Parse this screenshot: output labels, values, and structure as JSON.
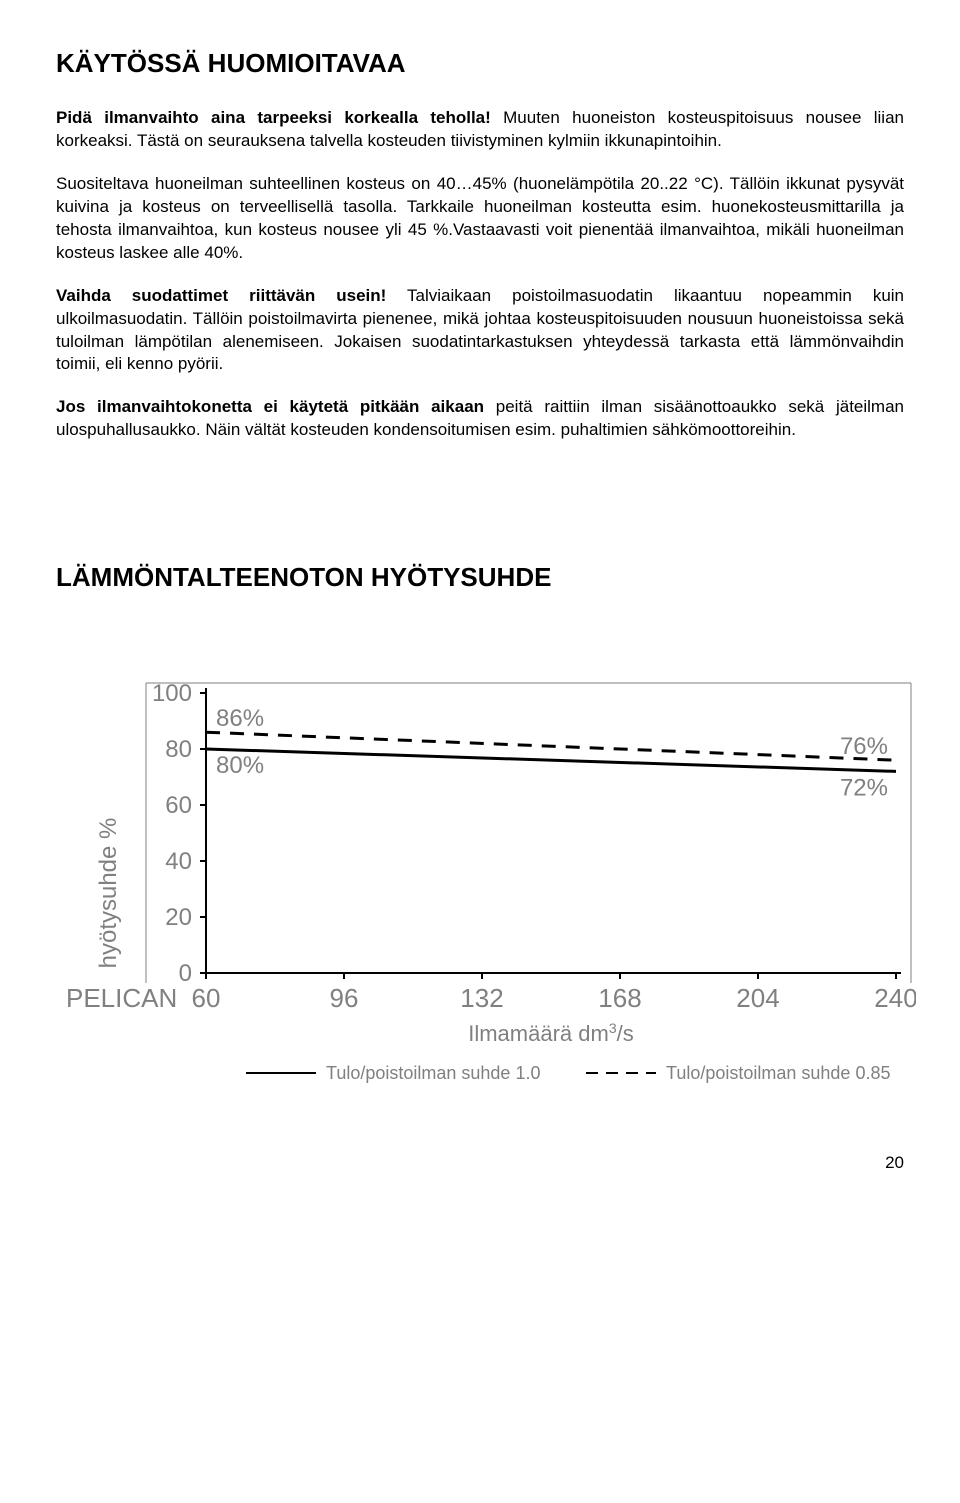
{
  "heading1": "KÄYTÖSSÄ HUOMIOITAVAA",
  "p1_bold": "Pidä ilmanvaihto aina tarpeeksi korkealla teholla!",
  "p1_rest": " Muuten huoneiston kosteuspitoisuus nousee liian korkeaksi. Tästä on seurauksena talvella kosteuden tiivistyminen kylmiin ikkunapintoihin.",
  "p2": "Suositeltava huoneilman suhteellinen kosteus on 40…45% (huonelämpötila 20..22 °C). Tällöin ikkunat pysyvät kuivina ja kosteus on terveellisellä tasolla. Tarkkaile huoneilman kosteutta esim. huonekosteusmittarilla ja tehosta ilmanvaihtoa, kun kosteus nousee yli 45 %.Vastaavasti voit pienentää ilmanvaihtoa, mikäli huoneilman kosteus laskee alle 40%.",
  "p3_bold": "Vaihda suodattimet riittävän usein!",
  "p3_rest": " Talviaikaan poistoilmasuodatin likaantuu nopeammin kuin ulkoilmasuodatin. Tällöin poistoilmavirta pienenee, mikä johtaa kosteuspitoisuuden nousuun huoneistoissa sekä tuloilman lämpötilan alenemiseen. Jokaisen suodatintarkastuksen yhteydessä tarkasta että lämmönvaihdin toimii, eli kenno pyörii.",
  "p4_bold": "Jos ilmanvaihtokonetta ei käytetä pitkään aikaan",
  "p4_rest": " peitä raittiin ilman sisäänottoaukko sekä jäteilman ulospuhallusaukko. Näin vältät kosteuden kondensoitumisen esim. puhaltimien sähkömoottoreihin.",
  "heading2": "LÄMMÖNTALTEENOTON HYÖTYSUHDE",
  "chart": {
    "y_label": "hyötysuhde %",
    "y_ticks": [
      0,
      20,
      40,
      60,
      80,
      100
    ],
    "x_device_label": "PELICAN",
    "x_ticks": [
      60,
      96,
      132,
      168,
      204,
      240
    ],
    "x_title": "Ilmamäärä dm",
    "x_title_sup": "3",
    "x_title_rest": "/s",
    "series_dashed": {
      "start_y": 86,
      "end_y": 76,
      "start_label": "86%",
      "end_label": "76%"
    },
    "series_solid": {
      "start_y": 80,
      "end_y": 72,
      "start_label": "80%",
      "end_label": "72%"
    },
    "legend_solid": "Tulo/poistoilman suhde 1.0",
    "legend_dashed": "Tulo/poistoilman suhde 0.85",
    "colors": {
      "frame": "#808080",
      "tick_text": "#808080",
      "line": "#000000"
    }
  },
  "page_number": "20"
}
